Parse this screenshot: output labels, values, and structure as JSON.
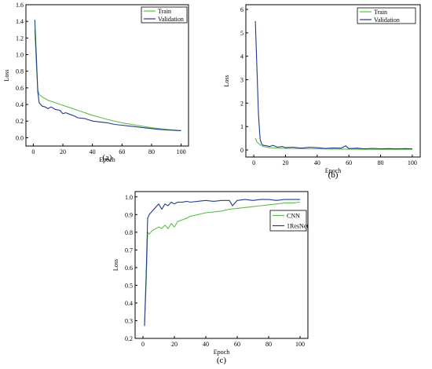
{
  "colors": {
    "green": "#5fbe4b",
    "blue": "#1f3c8c",
    "axis": "#000000"
  },
  "chart_data": [
    {
      "type": "line",
      "panel_label": "(a)",
      "xlabel": "Epoch",
      "ylabel": "Loss",
      "xlim": [
        -5,
        105
      ],
      "ylim": [
        -0.1,
        1.6
      ],
      "xticks": [
        0,
        20,
        40,
        60,
        80,
        100
      ],
      "yticks": [
        0.0,
        0.2,
        0.4,
        0.6,
        0.8,
        1.0,
        1.2,
        1.4,
        1.6
      ],
      "grid": false,
      "legend_position": "top-right",
      "series": [
        {
          "name": "Train",
          "color": "green",
          "x": [
            1,
            2,
            3,
            4,
            6,
            8,
            10,
            15,
            20,
            25,
            30,
            40,
            50,
            60,
            70,
            80,
            90,
            100
          ],
          "y": [
            1.3,
            0.9,
            0.58,
            0.52,
            0.49,
            0.47,
            0.45,
            0.42,
            0.39,
            0.36,
            0.33,
            0.27,
            0.22,
            0.18,
            0.15,
            0.12,
            0.1,
            0.085
          ]
        },
        {
          "name": "Validation",
          "color": "blue",
          "x": [
            1,
            2,
            3,
            4,
            5,
            6,
            8,
            10,
            12,
            15,
            18,
            20,
            22,
            25,
            28,
            30,
            35,
            40,
            45,
            50,
            55,
            60,
            65,
            70,
            75,
            80,
            85,
            90,
            95,
            100
          ],
          "y": [
            1.42,
            1.0,
            0.55,
            0.42,
            0.4,
            0.38,
            0.37,
            0.35,
            0.37,
            0.34,
            0.33,
            0.29,
            0.3,
            0.28,
            0.26,
            0.24,
            0.23,
            0.2,
            0.19,
            0.18,
            0.16,
            0.15,
            0.14,
            0.13,
            0.12,
            0.11,
            0.1,
            0.095,
            0.09,
            0.085
          ]
        }
      ]
    },
    {
      "type": "line",
      "panel_label": "(b)",
      "xlabel": "Epoch",
      "ylabel": "Loss",
      "xlim": [
        -5,
        105
      ],
      "ylim": [
        -0.3,
        6.2
      ],
      "xticks": [
        0,
        20,
        40,
        60,
        80,
        100
      ],
      "yticks": [
        0,
        1,
        2,
        3,
        4,
        5,
        6
      ],
      "grid": false,
      "legend_position": "top-right",
      "series": [
        {
          "name": "Train",
          "color": "green",
          "x": [
            1,
            2,
            3,
            4,
            5,
            6,
            8,
            10,
            15,
            20,
            30,
            40,
            50,
            60,
            70,
            80,
            90,
            100
          ],
          "y": [
            0.5,
            0.35,
            0.28,
            0.22,
            0.18,
            0.15,
            0.12,
            0.1,
            0.08,
            0.07,
            0.06,
            0.05,
            0.04,
            0.04,
            0.03,
            0.03,
            0.03,
            0.03
          ]
        },
        {
          "name": "Validation",
          "color": "blue",
          "x": [
            1,
            2,
            3,
            4,
            5,
            6,
            8,
            10,
            12,
            15,
            18,
            20,
            25,
            30,
            35,
            40,
            45,
            50,
            55,
            58,
            60,
            65,
            70,
            75,
            80,
            85,
            90,
            95,
            100
          ],
          "y": [
            5.5,
            3.5,
            1.5,
            0.45,
            0.25,
            0.2,
            0.18,
            0.15,
            0.2,
            0.12,
            0.15,
            0.1,
            0.12,
            0.08,
            0.12,
            0.1,
            0.07,
            0.09,
            0.08,
            0.18,
            0.06,
            0.08,
            0.05,
            0.07,
            0.05,
            0.06,
            0.05,
            0.06,
            0.05
          ]
        }
      ]
    },
    {
      "type": "line",
      "panel_label": "(c)",
      "xlabel": "Epoch",
      "ylabel": "Loss",
      "xlim": [
        -5,
        105
      ],
      "ylim": [
        0.2,
        1.03
      ],
      "xticks": [
        0,
        20,
        40,
        60,
        80,
        100
      ],
      "yticks": [
        0.2,
        0.3,
        0.4,
        0.5,
        0.6,
        0.7,
        0.8,
        0.9,
        1.0
      ],
      "grid": false,
      "legend_position": "center-right",
      "series": [
        {
          "name": "CNN",
          "color": "green",
          "x": [
            1,
            2,
            3,
            4,
            6,
            8,
            10,
            12,
            14,
            16,
            18,
            20,
            22,
            25,
            28,
            30,
            35,
            40,
            45,
            50,
            55,
            60,
            65,
            70,
            75,
            80,
            85,
            90,
            95,
            100
          ],
          "y": [
            0.28,
            0.5,
            0.8,
            0.79,
            0.81,
            0.82,
            0.83,
            0.82,
            0.84,
            0.82,
            0.85,
            0.83,
            0.86,
            0.87,
            0.88,
            0.89,
            0.9,
            0.91,
            0.915,
            0.92,
            0.93,
            0.935,
            0.94,
            0.945,
            0.95,
            0.955,
            0.96,
            0.965,
            0.965,
            0.97
          ]
        },
        {
          "name": "1ResNet",
          "color": "blue",
          "x": [
            1,
            2,
            3,
            4,
            6,
            8,
            10,
            12,
            14,
            16,
            18,
            20,
            22,
            25,
            28,
            30,
            35,
            40,
            45,
            50,
            55,
            57,
            60,
            65,
            70,
            75,
            80,
            85,
            90,
            95,
            100
          ],
          "y": [
            0.27,
            0.55,
            0.88,
            0.9,
            0.92,
            0.94,
            0.96,
            0.93,
            0.96,
            0.95,
            0.97,
            0.96,
            0.97,
            0.97,
            0.975,
            0.97,
            0.975,
            0.98,
            0.975,
            0.98,
            0.98,
            0.95,
            0.98,
            0.985,
            0.98,
            0.985,
            0.985,
            0.98,
            0.985,
            0.985,
            0.985
          ]
        }
      ]
    }
  ]
}
